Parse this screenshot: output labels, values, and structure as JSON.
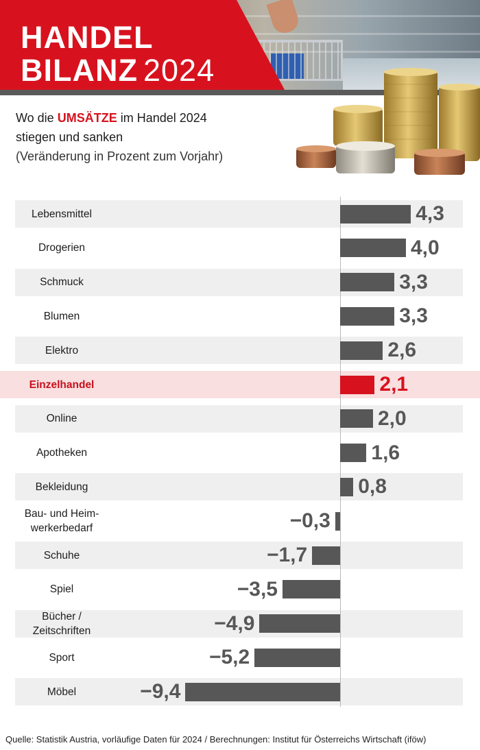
{
  "header": {
    "title_line1": "HANDEL",
    "title_line2_bold": "BILANZ",
    "title_line2_year": "2024"
  },
  "subtitle": {
    "line1_pre": "Wo die ",
    "line1_highlight": "UMSÄTZE",
    "line1_post": " im Handel 2024",
    "line2": "stiegen und sanken",
    "line3": "(Veränderung in Prozent zum Vorjahr)"
  },
  "colors": {
    "accent_red": "#d7121e",
    "bar_gray": "#575757",
    "row_alt": "#efefef",
    "highlight_row": "#f9dfe0"
  },
  "chart_data": {
    "type": "bar",
    "orientation": "horizontal",
    "categories": [
      "Lebensmittel",
      "Drogerien",
      "Schmuck",
      "Blumen",
      "Elektro",
      "Einzelhandel",
      "Online",
      "Apotheken",
      "Bekleidung",
      "Bau- und Heimwerkerbedarf",
      "Schuhe",
      "Spiel",
      "Bücher / Zeitschriften",
      "Sport",
      "Möbel"
    ],
    "category_lines": [
      [
        "Lebensmittel"
      ],
      [
        "Drogerien"
      ],
      [
        "Schmuck"
      ],
      [
        "Blumen"
      ],
      [
        "Elektro"
      ],
      [
        "Einzelhandel"
      ],
      [
        "Online"
      ],
      [
        "Apotheken"
      ],
      [
        "Bekleidung"
      ],
      [
        "Bau- und Heim-",
        "werkerbedarf"
      ],
      [
        "Schuhe"
      ],
      [
        "Spiel"
      ],
      [
        "Bücher /",
        "Zeitschriften"
      ],
      [
        "Sport"
      ],
      [
        "Möbel"
      ]
    ],
    "values": [
      4.3,
      4.0,
      3.3,
      3.3,
      2.6,
      2.1,
      2.0,
      1.6,
      0.8,
      -0.3,
      -1.7,
      -3.5,
      -4.9,
      -5.2,
      -9.4
    ],
    "value_labels": [
      "4,3",
      "4,0",
      "3,3",
      "3,3",
      "2,6",
      "2,1",
      "2,0",
      "1,6",
      "0,8",
      "−0,3",
      "−1,7",
      "−3,5",
      "−4,9",
      "−5,2",
      "−9,4"
    ],
    "highlight_category": "Einzelhandel",
    "ylabel": "Veränderung in Prozent zum Vorjahr",
    "xlim": [
      -9.4,
      4.3
    ]
  },
  "source": "Quelle: Statistik Austria, vorläufige Daten für 2024 / Berechnungen: Institut für Österreichs Wirtschaft (iföw)"
}
